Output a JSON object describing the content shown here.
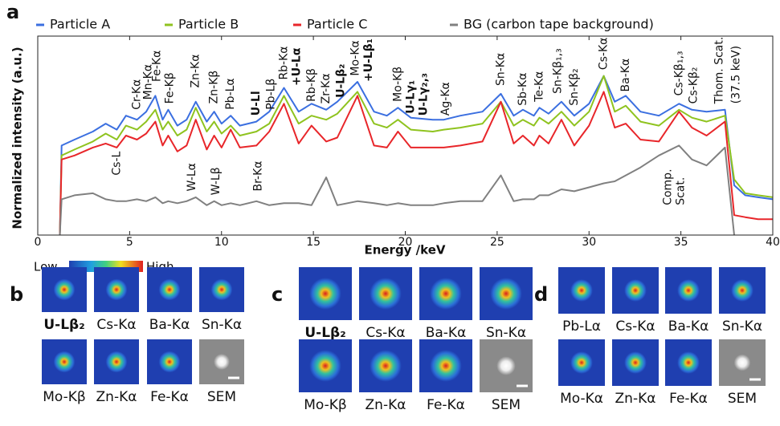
{
  "chart_data": {
    "type": "line",
    "panel": "a",
    "x_label": "Energy /keV",
    "y_label": "Normalized intensity (a.u.)",
    "xlim": [
      0,
      40
    ],
    "xticks": [
      0,
      5,
      10,
      15,
      20,
      25,
      30,
      35,
      40
    ],
    "ylim": [
      0,
      100
    ],
    "grid": false,
    "x": [
      1.2,
      1.3,
      2,
      3,
      3.7,
      4.3,
      4.8,
      5.4,
      5.9,
      6.4,
      6.8,
      7.1,
      7.6,
      8.1,
      8.6,
      9.2,
      9.6,
      10.0,
      10.5,
      11.0,
      11.9,
      12.6,
      13.4,
      14.2,
      14.9,
      15.7,
      16.3,
      17.4,
      18.3,
      19.0,
      19.6,
      20.3,
      21.5,
      22.1,
      23.0,
      24.2,
      25.2,
      25.9,
      26.4,
      27.0,
      27.3,
      27.8,
      28.5,
      29.2,
      30.0,
      30.8,
      31.4,
      32.0,
      32.8,
      33.8,
      34.9,
      35.6,
      36.4,
      37.4,
      37.9,
      38.5,
      39.2,
      40
    ],
    "series": [
      {
        "name": "Particle A",
        "color": "#3b6fe0",
        "values": [
          0,
          45,
          48,
          52,
          56,
          53,
          60,
          58,
          62,
          70,
          58,
          63,
          55,
          58,
          67,
          57,
          62,
          56,
          60,
          55,
          57,
          62,
          74,
          62,
          66,
          63,
          67,
          77,
          62,
          60,
          64,
          59,
          58,
          58,
          60,
          62,
          71,
          60,
          63,
          60,
          64,
          61,
          67,
          60,
          66,
          80,
          67,
          70,
          62,
          60,
          66,
          63,
          62,
          63,
          25,
          20,
          19,
          18
        ]
      },
      {
        "name": "Particle B",
        "color": "#8fc31f",
        "values": [
          0,
          40,
          43,
          47,
          51,
          48,
          55,
          53,
          57,
          63,
          53,
          57,
          50,
          53,
          64,
          52,
          57,
          51,
          55,
          50,
          52,
          56,
          70,
          56,
          60,
          58,
          61,
          72,
          56,
          54,
          58,
          53,
          52,
          53,
          54,
          56,
          67,
          55,
          58,
          55,
          59,
          56,
          62,
          55,
          62,
          80,
          62,
          65,
          57,
          55,
          63,
          59,
          57,
          60,
          28,
          21,
          20,
          19
        ]
      },
      {
        "name": "Particle C",
        "color": "#e8262a",
        "values": [
          0,
          38,
          40,
          44,
          46,
          44,
          50,
          48,
          51,
          57,
          45,
          50,
          42,
          45,
          58,
          43,
          50,
          44,
          53,
          44,
          45,
          52,
          66,
          46,
          55,
          47,
          49,
          70,
          45,
          44,
          52,
          44,
          44,
          44,
          45,
          47,
          67,
          46,
          50,
          45,
          50,
          46,
          58,
          45,
          55,
          72,
          54,
          56,
          48,
          47,
          62,
          54,
          50,
          57,
          10,
          9,
          8,
          8
        ]
      },
      {
        "name": "BG (carbon tape background)",
        "color": "#808080",
        "values": [
          0,
          18,
          20,
          21,
          18,
          17,
          17,
          18,
          17,
          19,
          16,
          17,
          16,
          17,
          19,
          15,
          17,
          15,
          16,
          15,
          17,
          15,
          16,
          16,
          15,
          29,
          15,
          17,
          16,
          15,
          16,
          15,
          15,
          16,
          17,
          17,
          30,
          17,
          18,
          18,
          20,
          20,
          23,
          22,
          24,
          26,
          27,
          30,
          34,
          40,
          45,
          38,
          35,
          44,
          0,
          null,
          null,
          null
        ]
      }
    ],
    "annotations": [
      {
        "text": "Cr-Kα",
        "x": 5.4,
        "y": 63
      },
      {
        "text": "Mn-Kα",
        "x": 6.0,
        "y": 68
      },
      {
        "text": "Fe-Kα",
        "x": 6.5,
        "y": 77
      },
      {
        "text": "Fe-Kβ",
        "x": 7.2,
        "y": 66
      },
      {
        "text": "Zn-Kα",
        "x": 8.6,
        "y": 74
      },
      {
        "text": "Zn-Kβ",
        "x": 9.6,
        "y": 66
      },
      {
        "text": "Pb-Lα",
        "x": 10.5,
        "y": 63
      },
      {
        "text": "U-Ll",
        "x": 11.9,
        "y": 60,
        "color": "#d6242a"
      },
      {
        "text": "Pb-Lβ",
        "x": 12.7,
        "y": 63
      },
      {
        "text": "Rb-Kα",
        "x": 13.4,
        "y": 78
      },
      {
        "text": "+U-Lα",
        "x": 14.1,
        "y": 75,
        "color": "#d6242a"
      },
      {
        "text": "Rb-Kβ",
        "x": 14.9,
        "y": 67
      },
      {
        "text": "Zr-Kα",
        "x": 15.7,
        "y": 66
      },
      {
        "text": "U-Lβ₂",
        "x": 16.5,
        "y": 69,
        "color": "#d6242a"
      },
      {
        "text": "Mo-Kα",
        "x": 17.3,
        "y": 80
      },
      {
        "text": "+U-Lβ₁",
        "x": 18.0,
        "y": 77,
        "color": "#d6242a"
      },
      {
        "text": "Mo-Kβ",
        "x": 19.6,
        "y": 67
      },
      {
        "text": "U-Lγ₁",
        "x": 20.3,
        "y": 61,
        "color": "#d6242a"
      },
      {
        "text": "U-Lγ₂,₃",
        "x": 21.0,
        "y": 60,
        "color": "#d6242a"
      },
      {
        "text": "Ag-Kα",
        "x": 22.2,
        "y": 60
      },
      {
        "text": "Sn-Kα",
        "x": 25.2,
        "y": 75
      },
      {
        "text": "Sb-Kα",
        "x": 26.4,
        "y": 65
      },
      {
        "text": "Te-Kα",
        "x": 27.3,
        "y": 67
      },
      {
        "text": "Sn-Kβ₁,₃",
        "x": 28.3,
        "y": 71
      },
      {
        "text": "Sn-Kβ₂",
        "x": 29.2,
        "y": 65
      },
      {
        "text": "Cs-Kα",
        "x": 30.8,
        "y": 83
      },
      {
        "text": "Ba-Kα",
        "x": 32.0,
        "y": 72
      },
      {
        "text": "Cs-Kβ₁,₃",
        "x": 34.9,
        "y": 70
      },
      {
        "text": "Cs-Kβ₂",
        "x": 35.7,
        "y": 66
      },
      {
        "text": "Thom. Scat.",
        "x": 37.1,
        "y": 66
      },
      {
        "text": "(37.5 keV)",
        "x": 38.0,
        "y": 66
      },
      {
        "text": "Cs-L",
        "x": 4.3,
        "y": 30
      },
      {
        "text": "W-Lα",
        "x": 8.4,
        "y": 22
      },
      {
        "text": "W-Lβ",
        "x": 9.7,
        "y": 20
      },
      {
        "text": "Br-Kα",
        "x": 12.0,
        "y": 22
      },
      {
        "text": "Comp.",
        "x": 34.3,
        "y": 15
      },
      {
        "text": "Scat.",
        "x": 35.0,
        "y": 15
      }
    ]
  },
  "colorbar": {
    "low": "Low",
    "high": "High"
  },
  "panels": [
    {
      "letter": "b",
      "labels": [
        {
          "text": "U-Lβ₂",
          "color": "#d6242a"
        },
        "Cs-Kα",
        "Ba-Kα",
        "Sn-Kα",
        "Mo-Kβ",
        "Zn-Kα",
        "Fe-Kα",
        "SEM"
      ]
    },
    {
      "letter": "c",
      "labels": [
        {
          "text": "U-Lβ₂",
          "color": "#d6242a"
        },
        "Cs-Kα",
        "Ba-Kα",
        "Sn-Kα",
        "Mo-Kβ",
        "Zn-Kα",
        "Fe-Kα",
        "SEM"
      ]
    },
    {
      "letter": "d",
      "labels": [
        "Pb-Lα",
        "Cs-Kα",
        "Ba-Kα",
        "Sn-Kα",
        "Mo-Kα",
        "Zn-Kα",
        "Fe-Kα",
        "SEM"
      ]
    }
  ]
}
